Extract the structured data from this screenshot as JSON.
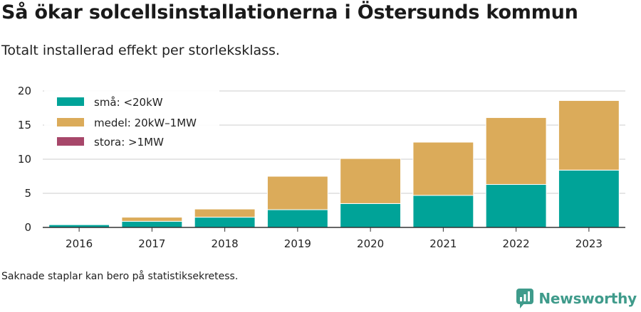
{
  "header": {
    "title": "Så ökar solcellsinstallationerna i Östersunds kommun",
    "subtitle": "Totalt installerad effekt per storleksklass."
  },
  "footer": {
    "note": "Saknade staplar kan bero på statistiksekretess.",
    "brand": "Newsworthy"
  },
  "colors": {
    "small": "#00a398",
    "medium": "#dbab5a",
    "large": "#a7476a",
    "grid": "#dddddd",
    "brand": "#3f9b8b"
  },
  "chart_data": {
    "type": "bar",
    "stacked": true,
    "categories": [
      "2016",
      "2017",
      "2018",
      "2019",
      "2020",
      "2021",
      "2022",
      "2023"
    ],
    "series": [
      {
        "name": "små: <20kW",
        "color": "#00a398",
        "values": [
          0.4,
          0.9,
          1.5,
          2.6,
          3.5,
          4.7,
          6.3,
          8.4
        ]
      },
      {
        "name": "medel: 20kW–1MW",
        "color": "#dbab5a",
        "values": [
          0.0,
          0.6,
          1.2,
          4.9,
          6.6,
          7.8,
          9.8,
          10.2
        ]
      },
      {
        "name": "stora: >1MW",
        "color": "#a7476a",
        "values": [
          0,
          0,
          0,
          0,
          0,
          0,
          0,
          0
        ]
      }
    ],
    "yticks": [
      "0",
      "5",
      "10",
      "15",
      "20"
    ],
    "ylim": [
      0,
      20
    ],
    "grid": true,
    "legend_position": "top-left"
  }
}
